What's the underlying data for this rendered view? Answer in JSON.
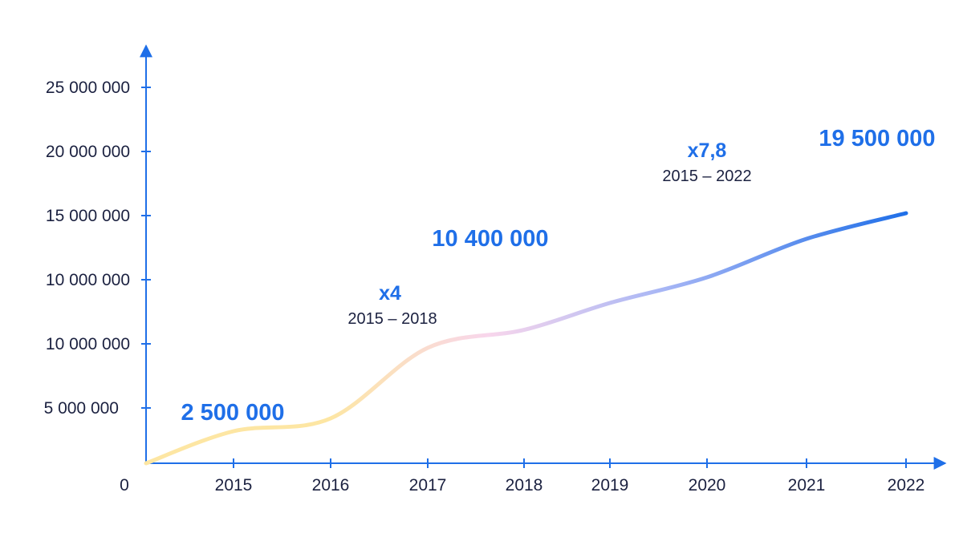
{
  "chart_data": {
    "type": "line",
    "title": "",
    "xlabel": "",
    "ylabel": "",
    "origin_label": "0",
    "x": [
      "2015",
      "2016",
      "2017",
      "2018",
      "2019",
      "2020",
      "2021",
      "2022"
    ],
    "y_tick_labels": [
      "5 000 000",
      "10 000 000",
      "10 000 000",
      "15 000 000",
      "20 000 000",
      "25 000 000"
    ],
    "series": [
      {
        "values": [
          {
            "x": "start",
            "y": 0
          },
          {
            "x": "2015",
            "y": 2500000
          },
          {
            "x": "2016",
            "y": 3500000
          },
          {
            "x": "2017",
            "y": 9000000
          },
          {
            "x": "2018",
            "y": 10400000
          },
          {
            "x": "2019",
            "y": 12500000
          },
          {
            "x": "2020",
            "y": 14500000
          },
          {
            "x": "2021",
            "y": 17500000
          },
          {
            "x": "2022",
            "y": 19500000
          }
        ]
      }
    ],
    "ylim": [
      0,
      28000000
    ],
    "grid": false,
    "colors": {
      "axis": "#1f6fe8",
      "line_start": "#fde6a3",
      "line_mid1": "#f8d6ec",
      "line_mid2": "#a7b6f5",
      "line_end": "#1f6fe8",
      "label_text": "#1f6fe8",
      "tick_text": "#1b2140"
    },
    "annotations": [
      {
        "id": "v2015",
        "text": "2 500 000",
        "kind": "value",
        "x": "2015",
        "y": 2500000
      },
      {
        "id": "v2018",
        "text": "10 400 000",
        "kind": "value",
        "x": "2018",
        "y": 10400000
      },
      {
        "id": "v2022",
        "text": "19 500 000",
        "kind": "value",
        "x": "2022",
        "y": 19500000
      },
      {
        "id": "m1",
        "text": "x4",
        "kind": "multiplier",
        "range": "2015 – 2018"
      },
      {
        "id": "m2",
        "text": "x7,8",
        "kind": "multiplier",
        "range": "2015 – 2022"
      }
    ]
  }
}
